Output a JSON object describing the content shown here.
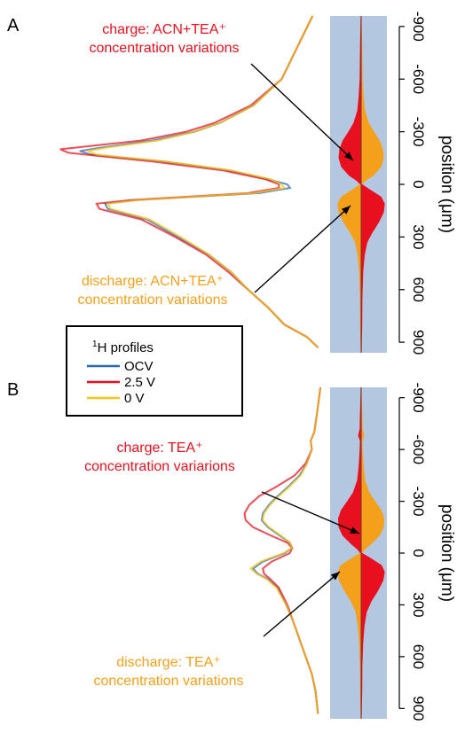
{
  "chart_data": [
    {
      "panel": "A",
      "type": "line",
      "ylabel": "position (μm)",
      "y_ticks": [
        -900,
        -600,
        -300,
        0,
        300,
        600,
        900
      ],
      "ylim": [
        -960,
        960
      ],
      "series": [
        {
          "name": "OCV",
          "color": "#2b6cb0",
          "profile": [
            [
              -960,
              0.05
            ],
            [
              -600,
              0.16
            ],
            [
              -450,
              0.26
            ],
            [
              -350,
              0.38
            ],
            [
              -300,
              0.47
            ],
            [
              -250,
              0.62
            ],
            [
              -210,
              0.8
            ],
            [
              -190,
              0.88
            ],
            [
              -170,
              0.84
            ],
            [
              -130,
              0.58
            ],
            [
              -80,
              0.35
            ],
            [
              -30,
              0.21
            ],
            [
              0,
              0.14
            ],
            [
              20,
              0.13
            ],
            [
              50,
              0.24
            ],
            [
              90,
              0.68
            ],
            [
              110,
              0.79
            ],
            [
              140,
              0.78
            ],
            [
              200,
              0.64
            ],
            [
              300,
              0.53
            ],
            [
              400,
              0.42
            ],
            [
              500,
              0.34
            ],
            [
              600,
              0.28
            ],
            [
              700,
              0.21
            ],
            [
              800,
              0.15
            ],
            [
              870,
              0.07
            ],
            [
              930,
              0.03
            ]
          ]
        },
        {
          "name": "2.5 V",
          "color": "#e8101e",
          "profile": [
            [
              -960,
              0.05
            ],
            [
              -600,
              0.16
            ],
            [
              -450,
              0.27
            ],
            [
              -350,
              0.4
            ],
            [
              -300,
              0.5
            ],
            [
              -250,
              0.66
            ],
            [
              -210,
              0.89
            ],
            [
              -200,
              0.95
            ],
            [
              -180,
              0.92
            ],
            [
              -130,
              0.62
            ],
            [
              -80,
              0.37
            ],
            [
              -30,
              0.22
            ],
            [
              0,
              0.17
            ],
            [
              20,
              0.17
            ],
            [
              50,
              0.28
            ],
            [
              90,
              0.7
            ],
            [
              110,
              0.82
            ],
            [
              140,
              0.81
            ],
            [
              200,
              0.66
            ],
            [
              300,
              0.54
            ],
            [
              400,
              0.43
            ],
            [
              500,
              0.35
            ],
            [
              600,
              0.28
            ],
            [
              700,
              0.21
            ],
            [
              800,
              0.15
            ],
            [
              870,
              0.07
            ],
            [
              930,
              0.03
            ]
          ]
        },
        {
          "name": "0 V",
          "color": "#f5c518",
          "profile": [
            [
              -960,
              0.05
            ],
            [
              -600,
              0.16
            ],
            [
              -450,
              0.26
            ],
            [
              -350,
              0.38
            ],
            [
              -300,
              0.47
            ],
            [
              -250,
              0.6
            ],
            [
              -210,
              0.78
            ],
            [
              -190,
              0.85
            ],
            [
              -170,
              0.82
            ],
            [
              -130,
              0.57
            ],
            [
              -80,
              0.34
            ],
            [
              -30,
              0.2
            ],
            [
              0,
              0.16
            ],
            [
              20,
              0.15
            ],
            [
              50,
              0.26
            ],
            [
              90,
              0.67
            ],
            [
              110,
              0.78
            ],
            [
              140,
              0.77
            ],
            [
              200,
              0.63
            ],
            [
              300,
              0.52
            ],
            [
              400,
              0.42
            ],
            [
              500,
              0.34
            ],
            [
              600,
              0.28
            ],
            [
              700,
              0.21
            ],
            [
              800,
              0.15
            ],
            [
              870,
              0.07
            ],
            [
              930,
              0.03
            ]
          ]
        }
      ],
      "strip": {
        "charge_color": "#e8101e",
        "discharge_color": "#f5a01a",
        "charge_lobe": [
          [
            -960,
            0.02
          ],
          [
            -800,
            0.04
          ],
          [
            -600,
            0.06
          ],
          [
            -500,
            0.1
          ],
          [
            -420,
            0.15
          ],
          [
            -350,
            0.3
          ],
          [
            -300,
            0.5
          ],
          [
            -250,
            0.72
          ],
          [
            -200,
            0.85
          ],
          [
            -150,
            0.88
          ],
          [
            -100,
            0.78
          ],
          [
            -50,
            0.48
          ],
          [
            -20,
            0.18
          ],
          [
            0,
            0.04
          ]
        ],
        "discharge_lobe": [
          [
            0,
            0.05
          ],
          [
            30,
            0.35
          ],
          [
            70,
            0.78
          ],
          [
            110,
            0.92
          ],
          [
            160,
            0.88
          ],
          [
            220,
            0.68
          ],
          [
            280,
            0.42
          ],
          [
            330,
            0.24
          ],
          [
            400,
            0.14
          ],
          [
            500,
            0.08
          ],
          [
            650,
            0.05
          ],
          [
            800,
            0.04
          ],
          [
            960,
            0.02
          ]
        ]
      },
      "annotations": [
        {
          "lines": [
            "charge: ACN+TEA⁺",
            "concentration variations"
          ],
          "color": "#e8101e"
        },
        {
          "lines": [
            "discharge: ACN+TEA⁺",
            "concentration variations"
          ],
          "color": "#f5a01a"
        }
      ]
    },
    {
      "panel": "B",
      "type": "line",
      "ylabel": "position (μm)",
      "y_ticks": [
        -900,
        -600,
        -300,
        0,
        300,
        600,
        900
      ],
      "ylim": [
        -960,
        960
      ],
      "series": [
        {
          "name": "OCV",
          "color": "#2b6cb0",
          "profile": [
            [
              -960,
              0.05
            ],
            [
              -800,
              0.08
            ],
            [
              -700,
              0.1
            ],
            [
              -650,
              0.13
            ],
            [
              -600,
              0.12
            ],
            [
              -520,
              0.16
            ],
            [
              -450,
              0.22
            ],
            [
              -380,
              0.32
            ],
            [
              -330,
              0.4
            ],
            [
              -280,
              0.47
            ],
            [
              -230,
              0.52
            ],
            [
              -190,
              0.53
            ],
            [
              -150,
              0.48
            ],
            [
              -100,
              0.38
            ],
            [
              -60,
              0.3
            ],
            [
              -30,
              0.28
            ],
            [
              0,
              0.34
            ],
            [
              50,
              0.52
            ],
            [
              90,
              0.6
            ],
            [
              120,
              0.56
            ],
            [
              150,
              0.48
            ],
            [
              200,
              0.4
            ],
            [
              300,
              0.33
            ],
            [
              400,
              0.27
            ],
            [
              500,
              0.22
            ],
            [
              600,
              0.17
            ],
            [
              700,
              0.12
            ],
            [
              800,
              0.09
            ],
            [
              930,
              0.07
            ]
          ]
        },
        {
          "name": "2.5 V",
          "color": "#e8101e",
          "profile": [
            [
              -960,
              0.05
            ],
            [
              -800,
              0.08
            ],
            [
              -700,
              0.1
            ],
            [
              -650,
              0.13
            ],
            [
              -600,
              0.12
            ],
            [
              -520,
              0.17
            ],
            [
              -450,
              0.26
            ],
            [
              -380,
              0.42
            ],
            [
              -330,
              0.55
            ],
            [
              -280,
              0.63
            ],
            [
              -230,
              0.67
            ],
            [
              -190,
              0.66
            ],
            [
              -150,
              0.6
            ],
            [
              -100,
              0.45
            ],
            [
              -60,
              0.32
            ],
            [
              -30,
              0.28
            ],
            [
              0,
              0.3
            ],
            [
              50,
              0.45
            ],
            [
              90,
              0.52
            ],
            [
              120,
              0.51
            ],
            [
              150,
              0.46
            ],
            [
              200,
              0.39
            ],
            [
              300,
              0.32
            ],
            [
              400,
              0.27
            ],
            [
              500,
              0.22
            ],
            [
              600,
              0.17
            ],
            [
              700,
              0.12
            ],
            [
              800,
              0.09
            ],
            [
              930,
              0.07
            ]
          ]
        },
        {
          "name": "0 V",
          "color": "#f5c518",
          "profile": [
            [
              -960,
              0.05
            ],
            [
              -800,
              0.08
            ],
            [
              -700,
              0.1
            ],
            [
              -650,
              0.13
            ],
            [
              -600,
              0.12
            ],
            [
              -520,
              0.16
            ],
            [
              -450,
              0.21
            ],
            [
              -380,
              0.31
            ],
            [
              -330,
              0.39
            ],
            [
              -280,
              0.46
            ],
            [
              -230,
              0.51
            ],
            [
              -190,
              0.52
            ],
            [
              -150,
              0.47
            ],
            [
              -100,
              0.37
            ],
            [
              -60,
              0.3
            ],
            [
              -30,
              0.28
            ],
            [
              0,
              0.35
            ],
            [
              50,
              0.54
            ],
            [
              90,
              0.62
            ],
            [
              120,
              0.57
            ],
            [
              150,
              0.49
            ],
            [
              200,
              0.41
            ],
            [
              300,
              0.33
            ],
            [
              400,
              0.27
            ],
            [
              500,
              0.22
            ],
            [
              600,
              0.17
            ],
            [
              700,
              0.12
            ],
            [
              800,
              0.09
            ],
            [
              930,
              0.07
            ]
          ]
        }
      ],
      "strip": {
        "charge_color": "#e8101e",
        "discharge_color": "#f5a01a",
        "charge_lobe": [
          [
            -960,
            0.02
          ],
          [
            -880,
            0.03
          ],
          [
            -800,
            0.05
          ],
          [
            -720,
            0.06
          ],
          [
            -680,
            0.12
          ],
          [
            -650,
            0.05
          ],
          [
            -600,
            0.06
          ],
          [
            -500,
            0.1
          ],
          [
            -420,
            0.16
          ],
          [
            -350,
            0.32
          ],
          [
            -300,
            0.55
          ],
          [
            -250,
            0.78
          ],
          [
            -200,
            0.9
          ],
          [
            -150,
            0.88
          ],
          [
            -100,
            0.72
          ],
          [
            -50,
            0.38
          ],
          [
            -20,
            0.14
          ],
          [
            0,
            0.04
          ]
        ],
        "discharge_lobe": [
          [
            0,
            0.05
          ],
          [
            30,
            0.38
          ],
          [
            70,
            0.8
          ],
          [
            110,
            0.92
          ],
          [
            160,
            0.86
          ],
          [
            220,
            0.65
          ],
          [
            280,
            0.4
          ],
          [
            340,
            0.22
          ],
          [
            420,
            0.13
          ],
          [
            520,
            0.08
          ],
          [
            650,
            0.05
          ],
          [
            800,
            0.04
          ],
          [
            960,
            0.02
          ]
        ]
      },
      "annotations": [
        {
          "lines": [
            "charge: TEA⁺",
            "concentration variarions"
          ],
          "color": "#e8101e"
        },
        {
          "lines": [
            "discharge: TEA⁺",
            "concentration variations"
          ],
          "color": "#f5a01a"
        }
      ]
    }
  ],
  "legend": {
    "title_sup": "1",
    "title": "H profiles",
    "entries": [
      {
        "label": "OCV",
        "color": "#2b6cb0"
      },
      {
        "label": "2.5 V",
        "color": "#e8101e"
      },
      {
        "label": "0 V",
        "color": "#f5c518"
      }
    ]
  },
  "colors": {
    "strip_bg": "#b3c8e0",
    "center_line": "#7a3030"
  }
}
